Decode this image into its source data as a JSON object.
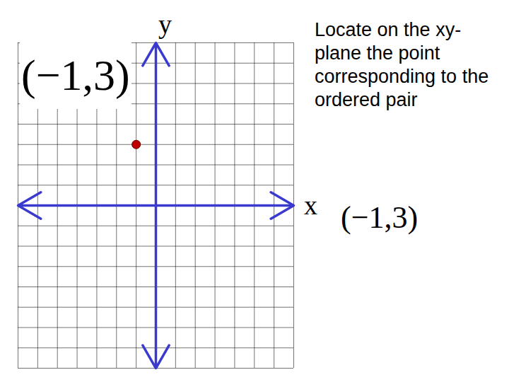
{
  "chart_data": {
    "type": "scatter",
    "title": "Locate on the xy-plane the point corresponding to the ordered pair",
    "x": [
      -1
    ],
    "values": [
      3
    ],
    "color": "#c00000",
    "xlabel": "x",
    "ylabel": "y",
    "xlim": [
      -7,
      7
    ],
    "ylim": [
      -8,
      8
    ],
    "xticks": [
      -7,
      -6,
      -5,
      -4,
      -3,
      -2,
      -1,
      0,
      1,
      2,
      3,
      4,
      5,
      6,
      7
    ],
    "yticks": [
      -8,
      -7,
      -6,
      -5,
      -4,
      -3,
      -2,
      -1,
      0,
      1,
      2,
      3,
      4,
      5,
      6,
      7,
      8
    ],
    "grid": true,
    "tick_labels": false,
    "annotations": [
      "(−1,3)",
      "(−1,3)"
    ]
  }
}
